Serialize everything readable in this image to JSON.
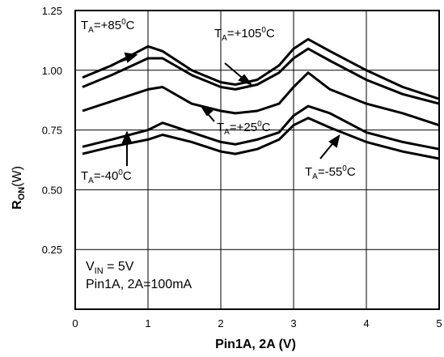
{
  "chart_data": {
    "type": "line",
    "xlabel": "Pin1A, 2A (V)",
    "ylabel_main": "R",
    "ylabel_sub": "ON",
    "ylabel_unit": "(W)",
    "xlim": [
      0,
      5
    ],
    "ylim": [
      0,
      1.25
    ],
    "x_ticks": [
      "0",
      "1",
      "2",
      "3",
      "4",
      "5"
    ],
    "y_ticks": [
      "0.25",
      "0.50",
      "0.75",
      "1.00",
      "1.25"
    ],
    "grid": true,
    "conditions": [
      "V",
      "IN",
      " = 5V",
      "Pin1A, 2A=100mA"
    ],
    "series": [
      {
        "name": "TA=+105°C",
        "x": [
          0.1,
          0.5,
          1.0,
          1.2,
          1.6,
          2.0,
          2.2,
          2.5,
          2.8,
          3.0,
          3.2,
          3.5,
          4.0,
          4.5,
          5.0
        ],
        "y": [
          0.97,
          1.02,
          1.1,
          1.08,
          1.0,
          0.95,
          0.94,
          0.96,
          1.02,
          1.09,
          1.13,
          1.08,
          1.0,
          0.93,
          0.88
        ]
      },
      {
        "name": "TA=+85°C",
        "x": [
          0.1,
          0.5,
          1.0,
          1.2,
          1.6,
          2.0,
          2.2,
          2.5,
          2.8,
          3.0,
          3.2,
          3.5,
          4.0,
          4.5,
          5.0
        ],
        "y": [
          0.93,
          0.98,
          1.05,
          1.05,
          0.98,
          0.93,
          0.92,
          0.94,
          0.99,
          1.05,
          1.09,
          1.04,
          0.96,
          0.9,
          0.86
        ]
      },
      {
        "name": "TA=+25°C",
        "x": [
          0.1,
          0.5,
          1.0,
          1.2,
          1.6,
          2.0,
          2.2,
          2.5,
          2.8,
          3.0,
          3.2,
          3.5,
          4.0,
          4.5,
          5.0
        ],
        "y": [
          0.83,
          0.87,
          0.92,
          0.93,
          0.86,
          0.83,
          0.82,
          0.83,
          0.86,
          0.93,
          0.99,
          0.92,
          0.86,
          0.82,
          0.77
        ]
      },
      {
        "name": "TA=-40°C",
        "x": [
          0.1,
          0.5,
          1.0,
          1.2,
          1.6,
          2.0,
          2.2,
          2.5,
          2.8,
          3.0,
          3.2,
          3.5,
          4.0,
          4.5,
          5.0
        ],
        "y": [
          0.68,
          0.71,
          0.75,
          0.78,
          0.74,
          0.7,
          0.69,
          0.71,
          0.74,
          0.81,
          0.85,
          0.82,
          0.74,
          0.7,
          0.67
        ]
      },
      {
        "name": "TA=-55°C",
        "x": [
          0.1,
          0.5,
          1.0,
          1.2,
          1.6,
          2.0,
          2.2,
          2.5,
          2.8,
          3.0,
          3.2,
          3.5,
          4.0,
          4.5,
          5.0
        ],
        "y": [
          0.65,
          0.68,
          0.71,
          0.73,
          0.7,
          0.66,
          0.65,
          0.67,
          0.71,
          0.77,
          0.8,
          0.76,
          0.7,
          0.66,
          0.63
        ]
      }
    ],
    "annotations": [
      {
        "id": "a105",
        "parts": [
          "T",
          "A",
          "=+105",
          "0",
          "C"
        ]
      },
      {
        "id": "a85",
        "parts": [
          "T",
          "A",
          "=+85",
          "0",
          "C"
        ]
      },
      {
        "id": "a25",
        "parts": [
          "T",
          "A",
          "=+25",
          "0",
          "C"
        ]
      },
      {
        "id": "an40",
        "parts": [
          "T",
          "A",
          "=-40",
          "0",
          "C"
        ]
      },
      {
        "id": "an55",
        "parts": [
          "T",
          "A",
          "=-55",
          "0",
          "C"
        ]
      }
    ]
  }
}
